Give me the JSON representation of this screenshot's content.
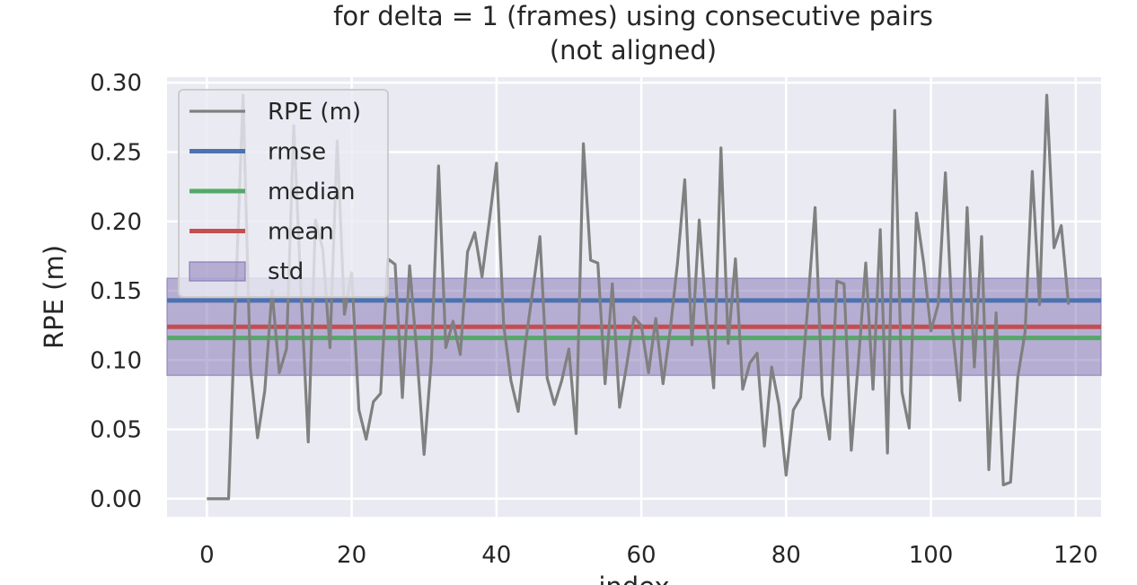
{
  "chart_data": {
    "type": "line",
    "title_lines": [
      "for delta = 1 (frames) using consecutive pairs",
      "(not aligned)"
    ],
    "xlabel": "index",
    "ylabel": "RPE (m)",
    "xlim": [
      -5.5,
      123.5
    ],
    "ylim": [
      -0.013,
      0.304
    ],
    "x_ticks": [
      0,
      20,
      40,
      60,
      80,
      100,
      120
    ],
    "y_ticks": [
      0.0,
      0.05,
      0.1,
      0.15,
      0.2,
      0.25,
      0.3
    ],
    "x_tick_labels": [
      "0",
      "20",
      "40",
      "60",
      "80",
      "100",
      "120"
    ],
    "y_tick_labels": [
      "0.00",
      "0.05",
      "0.10",
      "0.15",
      "0.20",
      "0.25",
      "0.30"
    ],
    "grid": true,
    "legend_position": "top-left",
    "series": [
      {
        "name": "RPE (m)",
        "color": "#808080",
        "values": [
          0.0,
          0.0,
          0.0,
          0.0,
          0.15,
          0.291,
          0.095,
          0.044,
          0.078,
          0.15,
          0.091,
          0.108,
          0.269,
          0.15,
          0.041,
          0.201,
          0.18,
          0.109,
          0.258,
          0.133,
          0.163,
          0.064,
          0.043,
          0.07,
          0.076,
          0.173,
          0.169,
          0.073,
          0.168,
          0.105,
          0.032,
          0.1,
          0.24,
          0.109,
          0.128,
          0.104,
          0.178,
          0.192,
          0.16,
          0.2,
          0.242,
          0.125,
          0.085,
          0.063,
          0.112,
          0.15,
          0.189,
          0.087,
          0.068,
          0.085,
          0.108,
          0.047,
          0.256,
          0.172,
          0.17,
          0.083,
          0.155,
          0.066,
          0.097,
          0.131,
          0.125,
          0.091,
          0.13,
          0.083,
          0.122,
          0.17,
          0.23,
          0.111,
          0.201,
          0.13,
          0.08,
          0.253,
          0.112,
          0.173,
          0.079,
          0.098,
          0.105,
          0.038,
          0.095,
          0.068,
          0.017,
          0.064,
          0.073,
          0.14,
          0.21,
          0.075,
          0.043,
          0.157,
          0.155,
          0.035,
          0.1,
          0.17,
          0.079,
          0.194,
          0.033,
          0.28,
          0.077,
          0.051,
          0.206,
          0.17,
          0.121,
          0.14,
          0.235,
          0.121,
          0.071,
          0.21,
          0.095,
          0.189,
          0.021,
          0.134,
          0.01,
          0.012,
          0.088,
          0.12,
          0.236,
          0.14,
          0.291,
          0.181,
          0.197,
          0.14
        ]
      }
    ],
    "stats": {
      "rmse": 0.143,
      "median": 0.116,
      "mean": 0.124,
      "std": 0.035
    },
    "legend": [
      {
        "label": "RPE (m)",
        "kind": "line",
        "color": "#808080"
      },
      {
        "label": "rmse",
        "kind": "line",
        "color": "#4c72b0"
      },
      {
        "label": "median",
        "kind": "line",
        "color": "#55a868"
      },
      {
        "label": "mean",
        "kind": "line",
        "color": "#c44e52"
      },
      {
        "label": "std",
        "kind": "patch",
        "color": "#8172b2"
      }
    ],
    "colors": {
      "plot_background": "#eaeaf2",
      "grid": "#ffffff",
      "rpe": "#808080",
      "rmse": "#4c72b0",
      "median": "#55a868",
      "mean": "#c44e52",
      "std": "#8172b2"
    }
  }
}
